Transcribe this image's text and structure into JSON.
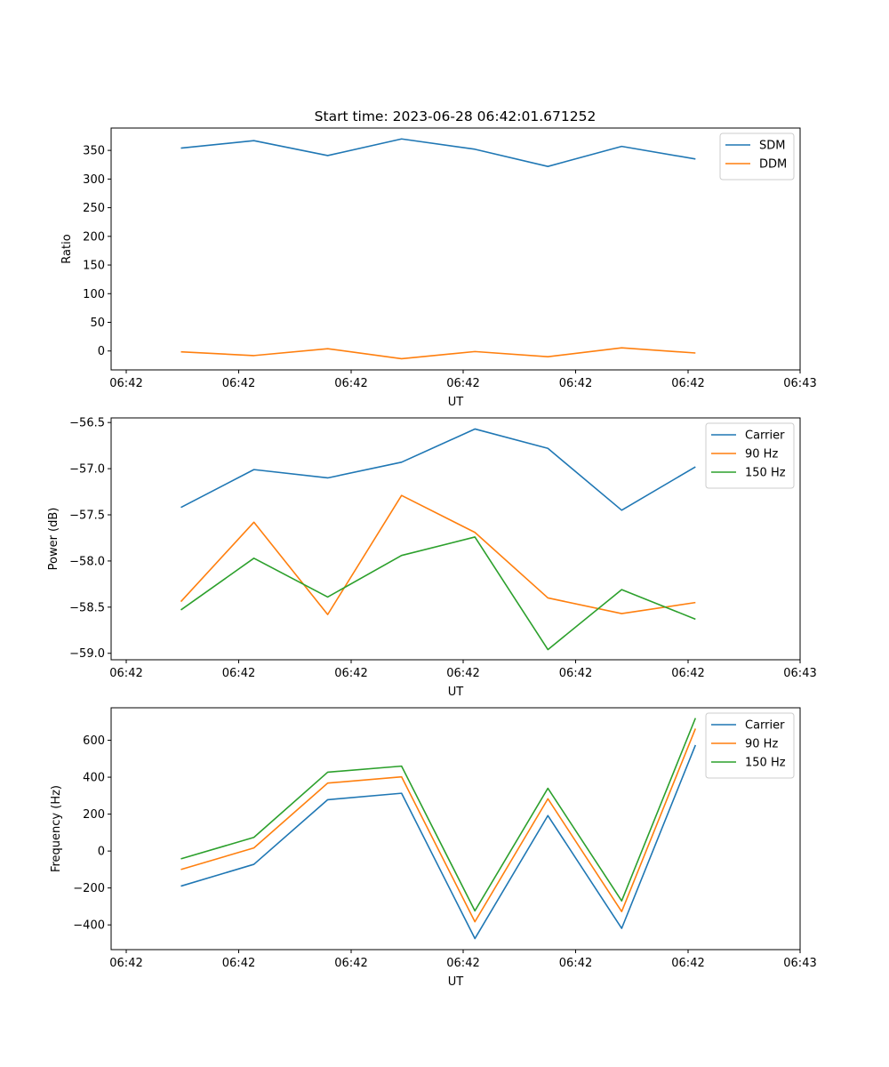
{
  "title": "Start time: 2023-06-28 06:42:01.671252",
  "chart_data": [
    {
      "type": "line",
      "title": "Start time: 2023-06-28 06:42:01.671252",
      "xlabel": "UT",
      "ylabel": "Ratio",
      "xticks": [
        "06:42",
        "06:42",
        "06:42",
        "06:42",
        "06:42",
        "06:42",
        "06:43"
      ],
      "ylim": [
        -33,
        389
      ],
      "yticks": [
        0,
        50,
        100,
        150,
        200,
        250,
        300,
        350
      ],
      "legend_position": "upper right",
      "grid": false,
      "series": [
        {
          "name": "SDM",
          "color": "#1f77b4",
          "values": [
            354,
            367,
            341,
            370,
            352,
            322,
            357,
            335
          ]
        },
        {
          "name": "DDM",
          "color": "#ff7f0e",
          "values": [
            -1.5,
            -8,
            4,
            -13.5,
            -1,
            -10,
            5.5,
            -3.5
          ]
        }
      ]
    },
    {
      "type": "line",
      "xlabel": "UT",
      "ylabel": "Power (dB)",
      "xticks": [
        "06:42",
        "06:42",
        "06:42",
        "06:42",
        "06:42",
        "06:42",
        "06:43"
      ],
      "ylim": [
        -59.07,
        -56.45
      ],
      "yticks": [
        -59.0,
        -58.5,
        -58.0,
        -57.5,
        -57.0,
        -56.5
      ],
      "legend_position": "upper right",
      "grid": false,
      "series": [
        {
          "name": "Carrier",
          "color": "#1f77b4",
          "values": [
            -57.42,
            -57.01,
            -57.1,
            -56.93,
            -56.57,
            -56.78,
            -57.45,
            -56.98
          ]
        },
        {
          "name": "90 Hz",
          "color": "#ff7f0e",
          "values": [
            -58.44,
            -57.58,
            -58.58,
            -57.29,
            -57.69,
            -58.4,
            -58.57,
            -58.45
          ]
        },
        {
          "name": "150 Hz",
          "color": "#2ca02c",
          "values": [
            -58.53,
            -57.97,
            -58.39,
            -57.94,
            -57.74,
            -58.96,
            -58.31,
            -58.63
          ]
        }
      ]
    },
    {
      "type": "line",
      "xlabel": "UT",
      "ylabel": "Frequency (Hz)",
      "xticks": [
        "06:42",
        "06:42",
        "06:42",
        "06:42",
        "06:42",
        "06:42",
        "06:43"
      ],
      "ylim": [
        -534,
        776
      ],
      "yticks": [
        -400,
        -200,
        0,
        200,
        400,
        600
      ],
      "legend_position": "upper right",
      "grid": false,
      "series": [
        {
          "name": "Carrier",
          "color": "#1f77b4",
          "values": [
            -190,
            -72,
            278,
            313,
            -474,
            192,
            -419,
            574
          ]
        },
        {
          "name": "90 Hz",
          "color": "#ff7f0e",
          "values": [
            -100,
            17,
            368,
            402,
            -383,
            283,
            -328,
            663
          ]
        },
        {
          "name": "150 Hz",
          "color": "#2ca02c",
          "values": [
            -42,
            74,
            427,
            460,
            -324,
            340,
            -270,
            720
          ]
        }
      ]
    }
  ]
}
